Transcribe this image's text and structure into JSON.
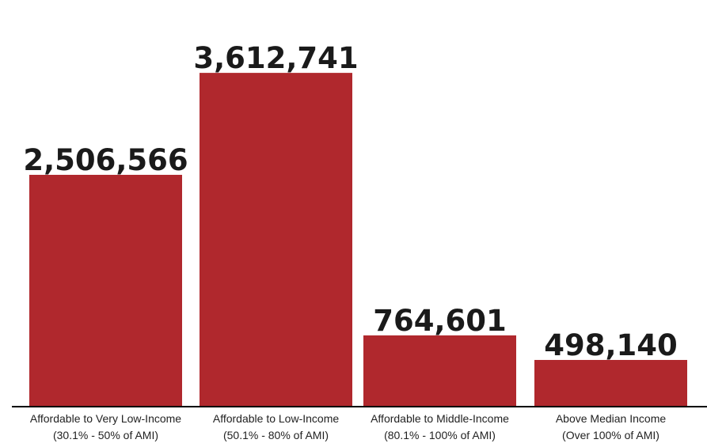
{
  "chart_data": {
    "type": "bar",
    "title": "",
    "xlabel": "",
    "ylabel": "",
    "categories": [
      [
        "Affordable to Very Low-Income",
        "(30.1% - 50% of AMI)"
      ],
      [
        "Affordable to Low-Income",
        "(50.1% - 80% of AMI)"
      ],
      [
        "Affordable to Middle-Income",
        "(80.1% - 100% of AMI)"
      ],
      [
        "Above Median Income",
        "(Over 100% of AMI)"
      ]
    ],
    "values": [
      2506566,
      3612741,
      764601,
      498140
    ],
    "value_labels": [
      "2,506,566",
      "3,612,741",
      "764,601",
      "498,140"
    ],
    "ylim": [
      0,
      4000000
    ],
    "grid": false,
    "legend": "none",
    "bar_color": "#b0282d",
    "axis_color": "#000000"
  }
}
